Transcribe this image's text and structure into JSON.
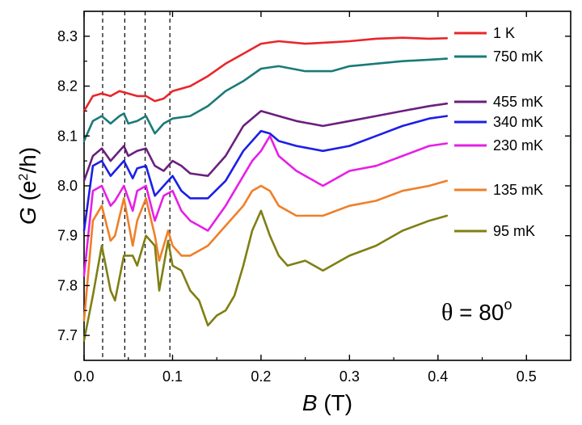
{
  "chart_data": {
    "type": "line",
    "xlabel_italic": "B",
    "xlabel_unit": "(T)",
    "ylabel_italic": "G",
    "ylabel_open": "(e",
    "ylabel_sup": "2",
    "ylabel_close": "/h)",
    "xlim": [
      0.0,
      0.55
    ],
    "ylim": [
      7.65,
      8.35
    ],
    "xticks": [
      0.0,
      0.1,
      0.2,
      0.3,
      0.4,
      0.5
    ],
    "xtick_labels": [
      "0.0",
      "0.1",
      "0.2",
      "0.3",
      "0.4",
      "0.5"
    ],
    "yticks": [
      7.7,
      7.8,
      7.9,
      8.0,
      8.1,
      8.2,
      8.3
    ],
    "ytick_labels": [
      "7.7",
      "7.8",
      "7.9",
      "8.0",
      "8.1",
      "8.2",
      "8.3"
    ],
    "vlines": [
      0.021,
      0.046,
      0.069,
      0.097
    ],
    "annotation_symbol": "θ",
    "annotation_text": " = 80",
    "annotation_sup": "o",
    "series": [
      {
        "name": "1 K",
        "color": "#e8262b",
        "x": [
          0.0,
          0.01,
          0.02,
          0.03,
          0.04,
          0.05,
          0.06,
          0.07,
          0.08,
          0.09,
          0.1,
          0.12,
          0.14,
          0.16,
          0.18,
          0.2,
          0.22,
          0.25,
          0.28,
          0.3,
          0.33,
          0.36,
          0.39,
          0.41
        ],
        "y": [
          8.15,
          8.18,
          8.185,
          8.18,
          8.19,
          8.185,
          8.18,
          8.18,
          8.17,
          8.175,
          8.19,
          8.2,
          8.22,
          8.245,
          8.265,
          8.285,
          8.29,
          8.285,
          8.288,
          8.29,
          8.295,
          8.297,
          8.295,
          8.296
        ]
      },
      {
        "name": "750 mK",
        "color": "#1a7a78",
        "x": [
          0.0,
          0.01,
          0.02,
          0.03,
          0.04,
          0.045,
          0.05,
          0.06,
          0.07,
          0.08,
          0.09,
          0.1,
          0.12,
          0.14,
          0.16,
          0.18,
          0.2,
          0.22,
          0.25,
          0.28,
          0.3,
          0.33,
          0.36,
          0.39,
          0.41
        ],
        "y": [
          8.09,
          8.13,
          8.14,
          8.125,
          8.14,
          8.145,
          8.125,
          8.13,
          8.14,
          8.105,
          8.125,
          8.135,
          8.14,
          8.16,
          8.19,
          8.21,
          8.235,
          8.24,
          8.23,
          8.23,
          8.24,
          8.245,
          8.25,
          8.253,
          8.255
        ]
      },
      {
        "name": "455 mK",
        "color": "#6a1f7d",
        "x": [
          0.0,
          0.01,
          0.02,
          0.03,
          0.04,
          0.045,
          0.05,
          0.06,
          0.07,
          0.08,
          0.09,
          0.1,
          0.11,
          0.12,
          0.14,
          0.16,
          0.18,
          0.2,
          0.21,
          0.22,
          0.24,
          0.27,
          0.3,
          0.33,
          0.36,
          0.39,
          0.41
        ],
        "y": [
          8.01,
          8.06,
          8.075,
          8.05,
          8.07,
          8.08,
          8.06,
          8.07,
          8.075,
          8.04,
          8.03,
          8.05,
          8.04,
          8.025,
          8.02,
          8.06,
          8.12,
          8.15,
          8.145,
          8.14,
          8.13,
          8.12,
          8.13,
          8.14,
          8.15,
          8.16,
          8.165
        ]
      },
      {
        "name": "340 mK",
        "color": "#1c1fe6",
        "x": [
          0.0,
          0.01,
          0.02,
          0.03,
          0.035,
          0.045,
          0.055,
          0.06,
          0.07,
          0.08,
          0.09,
          0.1,
          0.11,
          0.12,
          0.14,
          0.16,
          0.18,
          0.2,
          0.21,
          0.22,
          0.24,
          0.27,
          0.3,
          0.33,
          0.36,
          0.39,
          0.41
        ],
        "y": [
          7.91,
          8.04,
          8.05,
          8.02,
          8.03,
          8.05,
          8.015,
          8.035,
          8.04,
          7.98,
          8.0,
          8.02,
          7.99,
          7.975,
          7.975,
          8.01,
          8.07,
          8.11,
          8.105,
          8.09,
          8.08,
          8.07,
          8.08,
          8.1,
          8.12,
          8.135,
          8.14
        ]
      },
      {
        "name": "230 mK",
        "color": "#e61fe6",
        "x": [
          0.0,
          0.01,
          0.02,
          0.03,
          0.035,
          0.045,
          0.055,
          0.06,
          0.07,
          0.08,
          0.09,
          0.1,
          0.11,
          0.12,
          0.13,
          0.14,
          0.16,
          0.18,
          0.19,
          0.2,
          0.21,
          0.22,
          0.24,
          0.27,
          0.3,
          0.33,
          0.36,
          0.39,
          0.41
        ],
        "y": [
          7.82,
          7.99,
          8.0,
          7.96,
          7.97,
          8.0,
          7.95,
          7.99,
          8.0,
          7.93,
          7.98,
          7.99,
          7.95,
          7.93,
          7.92,
          7.91,
          7.96,
          8.02,
          8.05,
          8.07,
          8.1,
          8.06,
          8.03,
          8.0,
          8.03,
          8.04,
          8.06,
          8.08,
          8.085
        ]
      },
      {
        "name": "135 mK",
        "color": "#f07f28",
        "x": [
          0.0,
          0.01,
          0.02,
          0.03,
          0.035,
          0.045,
          0.055,
          0.06,
          0.07,
          0.08,
          0.085,
          0.095,
          0.1,
          0.11,
          0.12,
          0.13,
          0.14,
          0.16,
          0.18,
          0.19,
          0.2,
          0.21,
          0.22,
          0.24,
          0.27,
          0.3,
          0.33,
          0.36,
          0.39,
          0.41
        ],
        "y": [
          7.73,
          7.93,
          7.96,
          7.89,
          7.9,
          7.975,
          7.88,
          7.93,
          7.975,
          7.9,
          7.85,
          7.91,
          7.88,
          7.86,
          7.86,
          7.87,
          7.88,
          7.92,
          7.96,
          7.99,
          8.0,
          7.99,
          7.96,
          7.94,
          7.94,
          7.96,
          7.97,
          7.99,
          8.0,
          8.01
        ]
      },
      {
        "name": "95 mK",
        "color": "#7f7f15",
        "x": [
          0.0,
          0.01,
          0.02,
          0.03,
          0.035,
          0.045,
          0.055,
          0.06,
          0.07,
          0.08,
          0.085,
          0.095,
          0.1,
          0.11,
          0.12,
          0.13,
          0.14,
          0.15,
          0.16,
          0.17,
          0.18,
          0.19,
          0.2,
          0.21,
          0.22,
          0.23,
          0.25,
          0.27,
          0.3,
          0.33,
          0.36,
          0.39,
          0.41
        ],
        "y": [
          7.69,
          7.78,
          7.88,
          7.79,
          7.77,
          7.86,
          7.86,
          7.84,
          7.9,
          7.88,
          7.79,
          7.89,
          7.84,
          7.83,
          7.79,
          7.77,
          7.72,
          7.74,
          7.75,
          7.78,
          7.84,
          7.91,
          7.95,
          7.9,
          7.86,
          7.84,
          7.85,
          7.83,
          7.86,
          7.88,
          7.91,
          7.93,
          7.94
        ]
      }
    ]
  }
}
